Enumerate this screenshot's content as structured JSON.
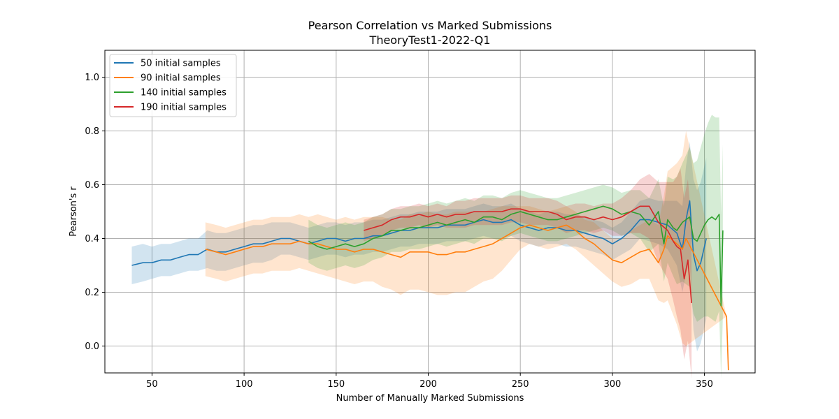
{
  "chart_data": {
    "type": "line",
    "title": "Pearson Correlation vs Marked Submissions",
    "subtitle": "TheoryTest1-2022-Q1",
    "xlabel": "Number of Manually Marked Submissions",
    "ylabel": "Pearson's r",
    "xlim": [
      24.4,
      377.5
    ],
    "ylim": [
      -0.1,
      1.1
    ],
    "xticks": [
      50,
      100,
      150,
      200,
      250,
      300,
      350
    ],
    "xtick_labels": [
      "50",
      "100",
      "150",
      "200",
      "250",
      "300",
      "350"
    ],
    "yticks": [
      0.0,
      0.2,
      0.4,
      0.6,
      0.8,
      1.0
    ],
    "ytick_labels": [
      "0.0",
      "0.2",
      "0.4",
      "0.6",
      "0.8",
      "1.0"
    ],
    "grid": true,
    "legend_position": "top-left",
    "series": [
      {
        "name": "50 initial samples",
        "color": "#1f77b4",
        "x": [
          39,
          45,
          50,
          55,
          60,
          65,
          70,
          75,
          80,
          85,
          90,
          95,
          100,
          105,
          110,
          115,
          120,
          125,
          130,
          135,
          140,
          145,
          150,
          155,
          160,
          165,
          170,
          175,
          180,
          185,
          190,
          195,
          200,
          205,
          210,
          215,
          220,
          225,
          230,
          235,
          240,
          245,
          250,
          255,
          260,
          265,
          270,
          275,
          280,
          285,
          290,
          295,
          300,
          305,
          310,
          315,
          320,
          325,
          330,
          335,
          338,
          340,
          342,
          344,
          346,
          348,
          351
        ],
        "y": [
          0.3,
          0.31,
          0.31,
          0.32,
          0.32,
          0.33,
          0.34,
          0.34,
          0.36,
          0.35,
          0.35,
          0.36,
          0.37,
          0.38,
          0.38,
          0.39,
          0.4,
          0.4,
          0.39,
          0.38,
          0.39,
          0.4,
          0.4,
          0.39,
          0.4,
          0.4,
          0.41,
          0.41,
          0.42,
          0.43,
          0.43,
          0.44,
          0.44,
          0.44,
          0.45,
          0.45,
          0.45,
          0.46,
          0.47,
          0.46,
          0.46,
          0.47,
          0.45,
          0.44,
          0.43,
          0.44,
          0.44,
          0.43,
          0.43,
          0.42,
          0.41,
          0.4,
          0.38,
          0.4,
          0.43,
          0.47,
          0.47,
          0.46,
          0.45,
          0.42,
          0.36,
          0.47,
          0.54,
          0.34,
          0.28,
          0.31,
          0.4
        ],
        "band": [
          0.07,
          0.07,
          0.06,
          0.06,
          0.06,
          0.06,
          0.06,
          0.06,
          0.07,
          0.07,
          0.07,
          0.07,
          0.07,
          0.07,
          0.07,
          0.07,
          0.06,
          0.06,
          0.06,
          0.06,
          0.06,
          0.06,
          0.06,
          0.06,
          0.06,
          0.06,
          0.06,
          0.06,
          0.06,
          0.06,
          0.06,
          0.06,
          0.06,
          0.06,
          0.06,
          0.06,
          0.06,
          0.06,
          0.06,
          0.06,
          0.06,
          0.06,
          0.06,
          0.06,
          0.06,
          0.06,
          0.06,
          0.06,
          0.06,
          0.06,
          0.06,
          0.06,
          0.06,
          0.06,
          0.07,
          0.07,
          0.08,
          0.08,
          0.09,
          0.12,
          0.16,
          0.2,
          0.22,
          0.28,
          0.3,
          0.3,
          0.3
        ]
      },
      {
        "name": "90 initial samples",
        "color": "#ff7f0e",
        "x": [
          79,
          85,
          90,
          95,
          100,
          105,
          110,
          115,
          120,
          125,
          130,
          135,
          140,
          145,
          150,
          155,
          160,
          165,
          170,
          175,
          180,
          185,
          190,
          195,
          200,
          205,
          210,
          215,
          220,
          225,
          230,
          235,
          240,
          245,
          250,
          255,
          260,
          265,
          270,
          275,
          280,
          285,
          290,
          295,
          300,
          305,
          310,
          315,
          320,
          325,
          328,
          330,
          335,
          338,
          340,
          362,
          363
        ],
        "y": [
          0.36,
          0.35,
          0.34,
          0.35,
          0.36,
          0.37,
          0.37,
          0.38,
          0.38,
          0.38,
          0.39,
          0.38,
          0.38,
          0.37,
          0.36,
          0.36,
          0.35,
          0.36,
          0.36,
          0.35,
          0.34,
          0.33,
          0.35,
          0.35,
          0.35,
          0.34,
          0.34,
          0.35,
          0.35,
          0.36,
          0.37,
          0.38,
          0.4,
          0.42,
          0.44,
          0.45,
          0.44,
          0.43,
          0.44,
          0.45,
          0.43,
          0.4,
          0.38,
          0.35,
          0.32,
          0.31,
          0.33,
          0.35,
          0.36,
          0.31,
          0.36,
          0.41,
          0.38,
          0.36,
          0.4,
          0.11,
          -0.09
        ],
        "band": [
          0.1,
          0.1,
          0.1,
          0.1,
          0.1,
          0.1,
          0.1,
          0.1,
          0.1,
          0.1,
          0.1,
          0.1,
          0.11,
          0.11,
          0.11,
          0.12,
          0.12,
          0.12,
          0.12,
          0.13,
          0.13,
          0.14,
          0.14,
          0.14,
          0.15,
          0.15,
          0.15,
          0.15,
          0.15,
          0.14,
          0.13,
          0.13,
          0.12,
          0.1,
          0.08,
          0.07,
          0.07,
          0.07,
          0.07,
          0.07,
          0.07,
          0.07,
          0.08,
          0.08,
          0.08,
          0.09,
          0.1,
          0.1,
          0.11,
          0.14,
          0.2,
          0.24,
          0.3,
          0.35,
          0.4,
          0.0,
          0.0
        ]
      },
      {
        "name": "140 initial samples",
        "color": "#2ca02c",
        "x": [
          135,
          140,
          145,
          150,
          155,
          160,
          165,
          170,
          175,
          180,
          185,
          190,
          195,
          200,
          205,
          210,
          215,
          220,
          225,
          230,
          235,
          240,
          245,
          250,
          255,
          260,
          265,
          270,
          275,
          280,
          285,
          290,
          295,
          300,
          305,
          310,
          315,
          320,
          325,
          328,
          330,
          333,
          335,
          338,
          340,
          342,
          344,
          346,
          348,
          350,
          352,
          354,
          356,
          358,
          359,
          360
        ],
        "y": [
          0.39,
          0.37,
          0.36,
          0.37,
          0.38,
          0.37,
          0.38,
          0.4,
          0.41,
          0.43,
          0.43,
          0.44,
          0.44,
          0.45,
          0.46,
          0.45,
          0.46,
          0.47,
          0.46,
          0.48,
          0.48,
          0.47,
          0.49,
          0.5,
          0.49,
          0.48,
          0.47,
          0.47,
          0.48,
          0.49,
          0.5,
          0.51,
          0.52,
          0.51,
          0.49,
          0.5,
          0.49,
          0.45,
          0.5,
          0.38,
          0.47,
          0.44,
          0.43,
          0.46,
          0.47,
          0.48,
          0.4,
          0.39,
          0.42,
          0.45,
          0.47,
          0.48,
          0.47,
          0.49,
          0.15,
          0.43
        ],
        "band": [
          0.08,
          0.08,
          0.08,
          0.08,
          0.08,
          0.08,
          0.08,
          0.08,
          0.08,
          0.08,
          0.08,
          0.08,
          0.08,
          0.08,
          0.08,
          0.08,
          0.08,
          0.08,
          0.08,
          0.08,
          0.08,
          0.08,
          0.08,
          0.08,
          0.08,
          0.08,
          0.08,
          0.08,
          0.08,
          0.08,
          0.08,
          0.08,
          0.08,
          0.08,
          0.08,
          0.08,
          0.09,
          0.1,
          0.12,
          0.14,
          0.16,
          0.18,
          0.2,
          0.22,
          0.24,
          0.26,
          0.28,
          0.3,
          0.32,
          0.34,
          0.36,
          0.38,
          0.38,
          0.36,
          0.34,
          0.32
        ]
      },
      {
        "name": "190 initial samples",
        "color": "#d62728",
        "x": [
          165,
          170,
          175,
          180,
          185,
          190,
          195,
          200,
          205,
          210,
          215,
          220,
          225,
          230,
          235,
          240,
          245,
          250,
          255,
          260,
          265,
          270,
          275,
          280,
          285,
          290,
          295,
          300,
          305,
          310,
          315,
          320,
          325,
          330,
          333,
          335,
          337,
          339,
          341,
          343
        ],
        "y": [
          0.43,
          0.44,
          0.45,
          0.47,
          0.48,
          0.48,
          0.49,
          0.48,
          0.49,
          0.48,
          0.49,
          0.49,
          0.5,
          0.5,
          0.5,
          0.5,
          0.51,
          0.51,
          0.5,
          0.5,
          0.5,
          0.49,
          0.47,
          0.48,
          0.48,
          0.47,
          0.48,
          0.47,
          0.48,
          0.5,
          0.52,
          0.52,
          0.46,
          0.43,
          0.39,
          0.37,
          0.36,
          0.25,
          0.32,
          0.16
        ],
        "band": [
          0.04,
          0.04,
          0.04,
          0.04,
          0.04,
          0.04,
          0.04,
          0.04,
          0.04,
          0.04,
          0.05,
          0.05,
          0.05,
          0.05,
          0.05,
          0.05,
          0.05,
          0.05,
          0.05,
          0.05,
          0.05,
          0.05,
          0.05,
          0.05,
          0.05,
          0.05,
          0.05,
          0.06,
          0.07,
          0.08,
          0.1,
          0.12,
          0.15,
          0.18,
          0.22,
          0.26,
          0.3,
          0.3,
          0.3,
          0.3
        ]
      }
    ]
  }
}
